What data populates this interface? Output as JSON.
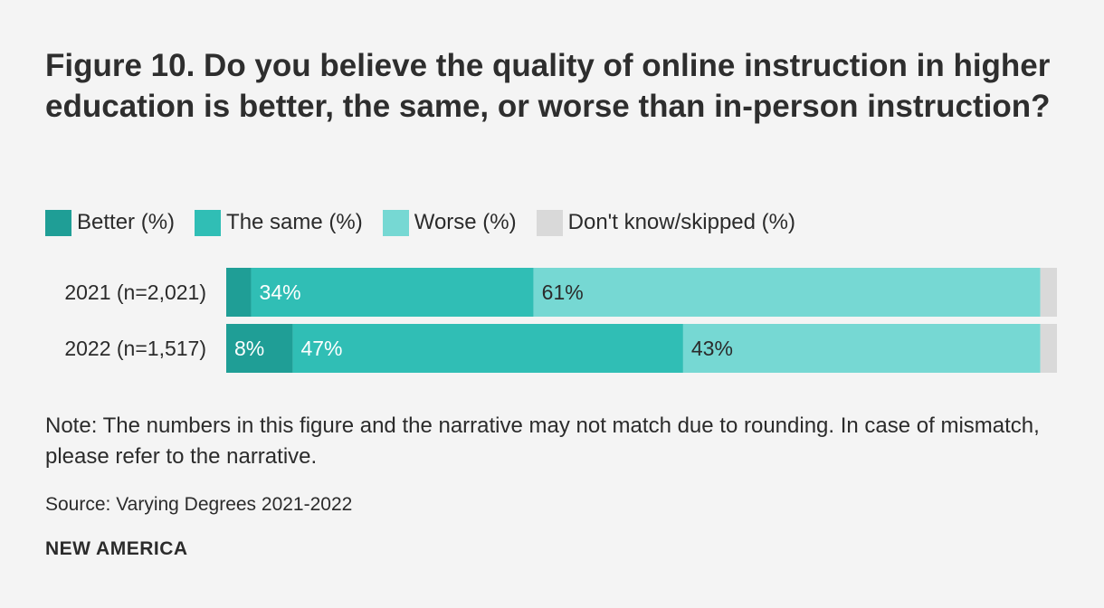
{
  "title": "Figure 10. Do you believe the quality of online instruction in higher education is better, the same, or worse than in-person instruction?",
  "note": "Note: The numbers in this figure and the narrative may not match due to rounding. In case of mismatch, please refer to the narrative.",
  "source": "Source: Varying Degrees 2021-2022",
  "brand": "NEW AMERICA",
  "chart_data": {
    "type": "bar",
    "orientation": "horizontal",
    "stacked": true,
    "categories": [
      "2021 (n=2,021)",
      "2022 (n=1,517)"
    ],
    "series": [
      {
        "name": "Better (%)",
        "color": "#1f9e96",
        "values": [
          3,
          8
        ],
        "labels": [
          "",
          "8%"
        ]
      },
      {
        "name": "The same (%)",
        "color": "#30beb5",
        "values": [
          34,
          47
        ],
        "labels": [
          "34%",
          "47%"
        ]
      },
      {
        "name": "Worse (%)",
        "color": "#76d8d3",
        "values": [
          61,
          43
        ],
        "labels": [
          "61%",
          "43%"
        ]
      },
      {
        "name": "Don't know/skipped (%)",
        "color": "#d9d9d9",
        "values": [
          2,
          2
        ],
        "labels": [
          "",
          ""
        ]
      }
    ],
    "xlim": [
      0,
      100
    ],
    "legend_position": "top-left",
    "grid": false
  }
}
